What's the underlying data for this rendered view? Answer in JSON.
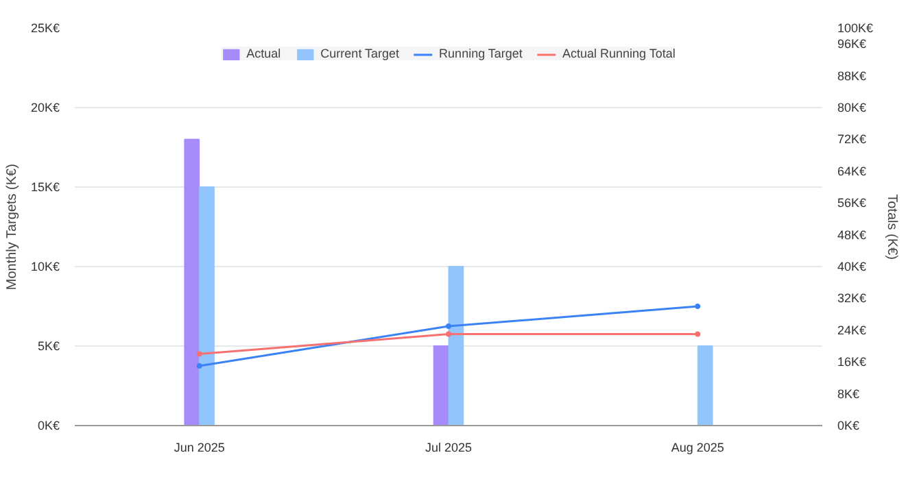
{
  "chart_data": {
    "type": "bar",
    "categories": [
      "Jun 2025",
      "Jul 2025",
      "Aug 2025"
    ],
    "ylabel": "Monthly Targets (K€)",
    "y2label": "Totals (K€)",
    "ylim": [
      0,
      25
    ],
    "yticks": [
      {
        "value": 0,
        "label": "0K€"
      },
      {
        "value": 5,
        "label": "5K€"
      },
      {
        "value": 10,
        "label": "10K€"
      },
      {
        "value": 15,
        "label": "15K€"
      },
      {
        "value": 20,
        "label": "20K€"
      },
      {
        "value": 25,
        "label": "25K€"
      }
    ],
    "y2lim": [
      0,
      100
    ],
    "y2ticks": [
      {
        "value": 0,
        "label": "0K€"
      },
      {
        "value": 8,
        "label": "8K€"
      },
      {
        "value": 16,
        "label": "16K€"
      },
      {
        "value": 24,
        "label": "24K€"
      },
      {
        "value": 32,
        "label": "32K€"
      },
      {
        "value": 40,
        "label": "40K€"
      },
      {
        "value": 48,
        "label": "48K€"
      },
      {
        "value": 56,
        "label": "56K€"
      },
      {
        "value": 64,
        "label": "64K€"
      },
      {
        "value": 72,
        "label": "72K€"
      },
      {
        "value": 80,
        "label": "80K€"
      },
      {
        "value": 88,
        "label": "88K€"
      },
      {
        "value": 96,
        "label": "96K€"
      },
      {
        "value": 100,
        "label": "100K€"
      }
    ],
    "grid": "y",
    "legend": "top",
    "marker": "circle",
    "series": [
      {
        "name": "Actual",
        "color": "#a78bfa",
        "values": [
          18,
          5,
          null
        ]
      },
      {
        "name": "Current Target",
        "color": "#93c5fd",
        "values": [
          15,
          10,
          5
        ]
      },
      {
        "name": "Running Target",
        "type": "line",
        "axis": "y2",
        "color": "#3b82f6",
        "values": [
          15,
          25,
          30
        ]
      },
      {
        "name": "Actual Running Total",
        "type": "line",
        "axis": "y2",
        "color": "#f87171",
        "values": [
          18,
          23,
          23
        ]
      }
    ]
  }
}
